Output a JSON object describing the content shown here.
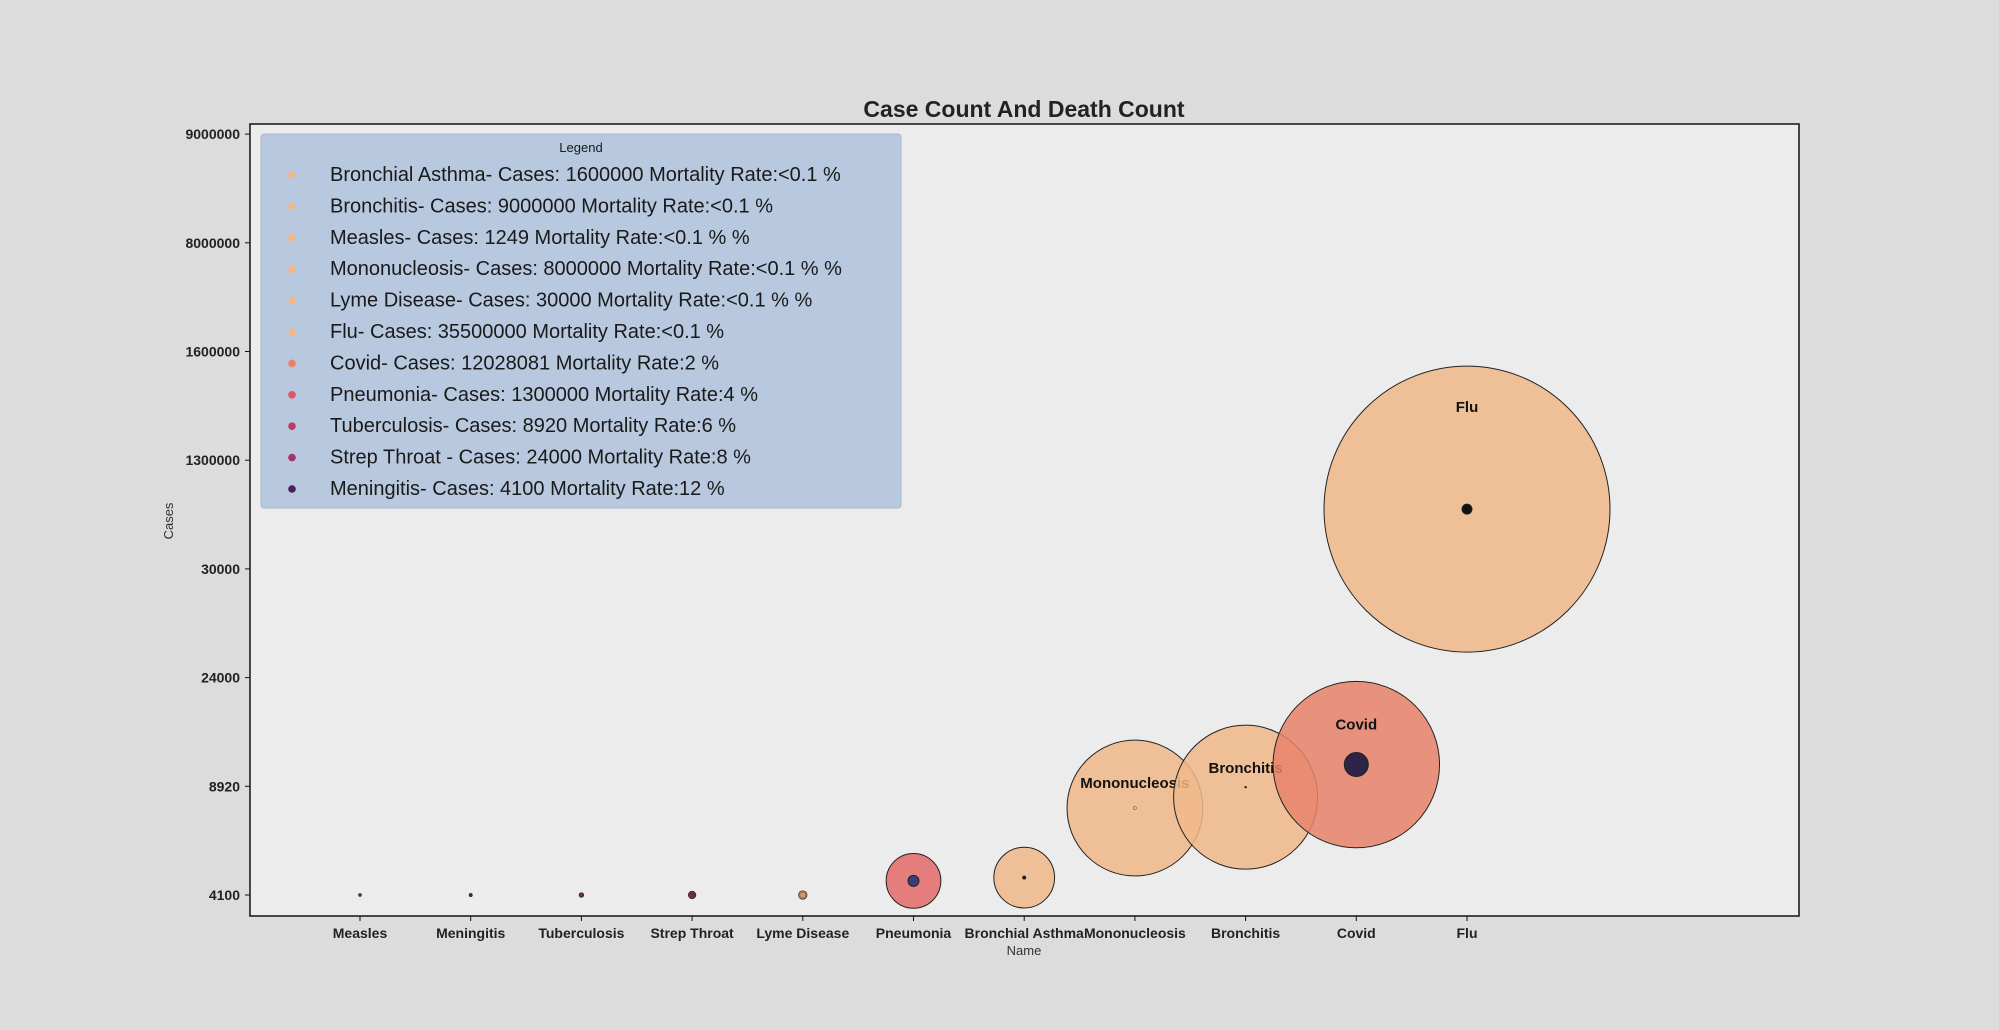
{
  "chart_data": {
    "type": "scatter",
    "title": "Case Count And Death Count",
    "xlabel": "Name",
    "ylabel": "Cases",
    "legend_title": "Legend",
    "legend_placement": "top-left",
    "grid": false,
    "categories": [
      "Measles",
      "Meningitis",
      "Tuberculosis",
      "Strep Throat",
      "Lyme Disease",
      "Pneumonia",
      "Bronchial Asthma",
      "Mononucleosis",
      "Bronchitis",
      "Covid",
      "Flu"
    ],
    "y_tick_labels": [
      "4100",
      "8920",
      "24000",
      "30000",
      "1300000",
      "1600000",
      "8000000",
      "9000000"
    ],
    "points": [
      {
        "name": "Measles",
        "cases": 1249,
        "mortality": "<0.1 %",
        "y_level": 0,
        "death_color": "#6a1e4f",
        "fill": "#f0b889",
        "labeled": false
      },
      {
        "name": "Meningitis",
        "cases": 4100,
        "mortality": "12",
        "y_level": 0,
        "death_color": "#4a1f5c",
        "fill": "#4a1f5c",
        "labeled": false
      },
      {
        "name": "Tuberculosis",
        "cases": 8920,
        "mortality": "6",
        "y_level": 0,
        "death_color": "#8a2a55",
        "fill": "#b03a66",
        "labeled": false
      },
      {
        "name": "Strep Throat",
        "cases": 24000,
        "mortality": "8",
        "y_level": 0,
        "death_color": "#7a2458",
        "fill": "#a7366a",
        "labeled": false
      },
      {
        "name": "Lyme Disease",
        "cases": 30000,
        "mortality": "<0.1 %",
        "y_level": 0,
        "death_color": "#d99a6a",
        "fill": "#f0b889",
        "labeled": false
      },
      {
        "name": "Pneumonia",
        "cases": 1300000,
        "mortality": "4",
        "y_level": 0.13,
        "death_color": "#3c3c78",
        "fill": "#e46a6a",
        "labeled": false
      },
      {
        "name": "Bronchial Asthma",
        "cases": 1600000,
        "mortality": "<0.1",
        "y_level": 0.16,
        "death_color": "#111111",
        "fill": "#f0b889",
        "labeled": false
      },
      {
        "name": "Mononucleosis",
        "cases": 8000000,
        "mortality": "<0.1 %",
        "y_level": 0.8,
        "death_color": "#f0b889",
        "fill": "#f0b889",
        "labeled": true
      },
      {
        "name": "Bronchitis",
        "cases": 9000000,
        "mortality": "<0.1",
        "y_level": 0.9,
        "death_color": "#111111",
        "fill": "#f0b889",
        "labeled": true
      },
      {
        "name": "Covid",
        "cases": 12028081,
        "mortality": "2",
        "y_level": 1.2,
        "death_color": "#2e2448",
        "fill": "#e8826a",
        "labeled": true
      },
      {
        "name": "Flu",
        "cases": 35500000,
        "mortality": "<0.1",
        "y_level": 3.55,
        "death_color": "#111111",
        "fill": "#f0b889",
        "labeled": true
      }
    ],
    "legend": [
      {
        "text": "Bronchial Asthma- Cases: 1600000  Mortality Rate:<0.1 %",
        "color": "#f0b889"
      },
      {
        "text": "Bronchitis- Cases: 9000000  Mortality Rate:<0.1 %",
        "color": "#f0b889"
      },
      {
        "text": "Measles- Cases: 1249  Mortality Rate:<0.1 % %",
        "color": "#f0b889"
      },
      {
        "text": "Mononucleosis- Cases: 8000000  Mortality Rate:<0.1 % %",
        "color": "#f0b889"
      },
      {
        "text": "Lyme Disease- Cases: 30000  Mortality Rate:<0.1 % %",
        "color": "#f0b889"
      },
      {
        "text": "Flu- Cases: 35500000  Mortality Rate:<0.1 %",
        "color": "#f0b889"
      },
      {
        "text": "Covid- Cases: 12028081  Mortality Rate:2 %",
        "color": "#ec8068"
      },
      {
        "text": "Pneumonia- Cases: 1300000  Mortality Rate:4 %",
        "color": "#e05560"
      },
      {
        "text": "Tuberculosis- Cases: 8920  Mortality Rate:6 %",
        "color": "#c03b64"
      },
      {
        "text": "Strep Throat - Cases: 24000  Mortality Rate:8 %",
        "color": "#a33466"
      },
      {
        "text": "Meningitis- Cases: 4100  Mortality Rate:12 %",
        "color": "#4a1f5c"
      }
    ]
  }
}
